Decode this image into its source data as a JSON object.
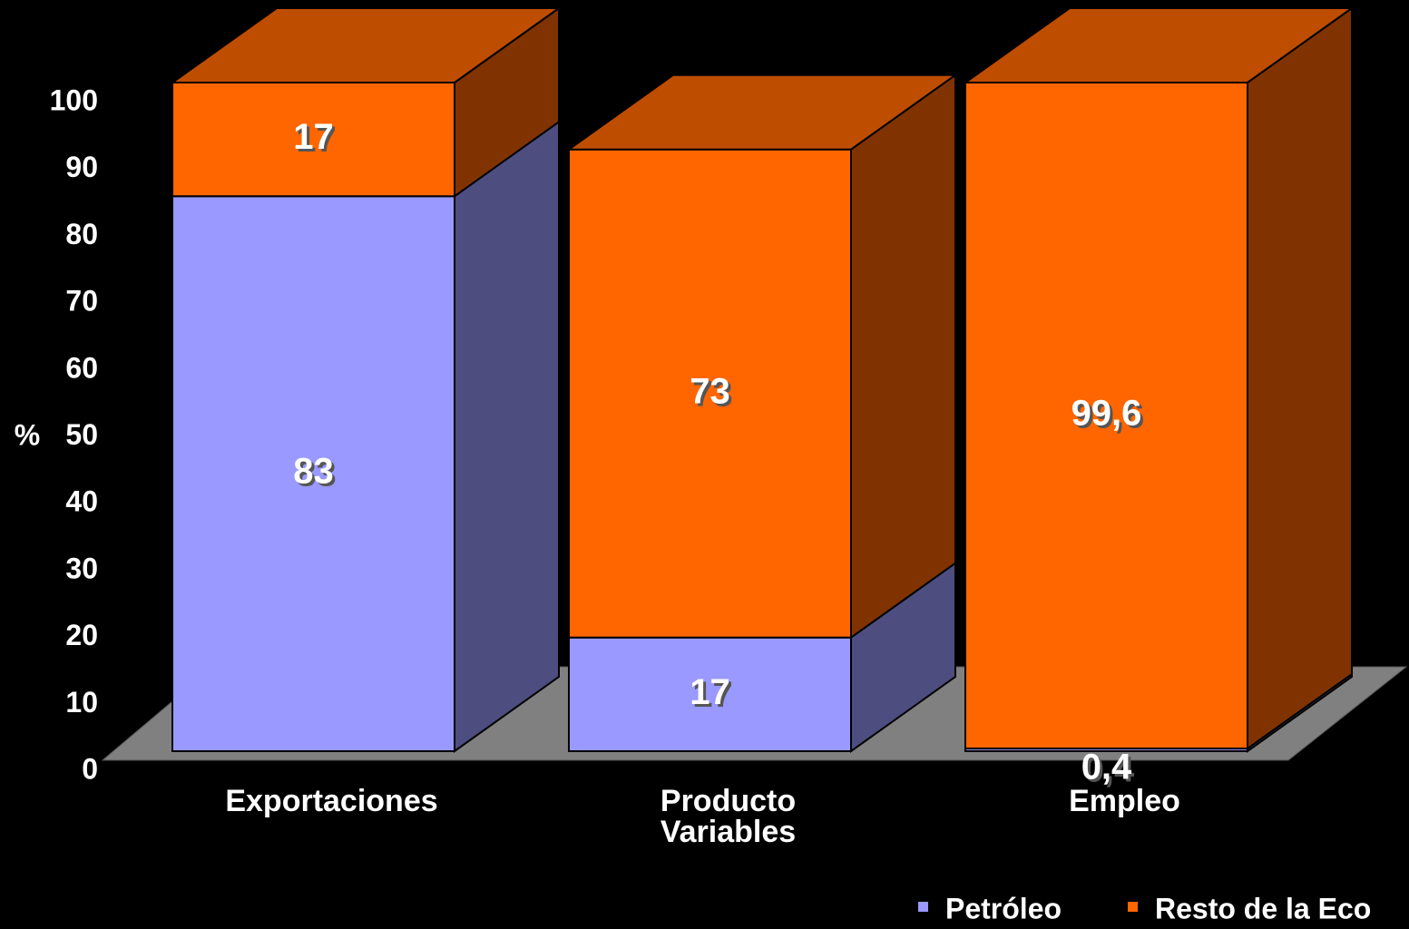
{
  "chart_data": {
    "type": "bar3d_stacked",
    "ylabel": "%",
    "categories": [
      "Exportaciones",
      "Producto\nVariables",
      "Empleo"
    ],
    "series": [
      {
        "name": "Petróleo",
        "color": "#9999ff",
        "values": [
          83,
          17,
          0.4
        ],
        "value_labels": [
          "83",
          "17",
          "0,4"
        ]
      },
      {
        "name": "Resto de la Eco",
        "color": "#ff6600",
        "values": [
          17,
          73,
          99.6
        ],
        "value_labels": [
          "17",
          "73",
          "99,6"
        ]
      }
    ],
    "ylim": [
      0,
      100
    ],
    "yticks": [
      0,
      10,
      20,
      30,
      40,
      50,
      60,
      70,
      80,
      90,
      100
    ],
    "legend": "bottom-right"
  }
}
